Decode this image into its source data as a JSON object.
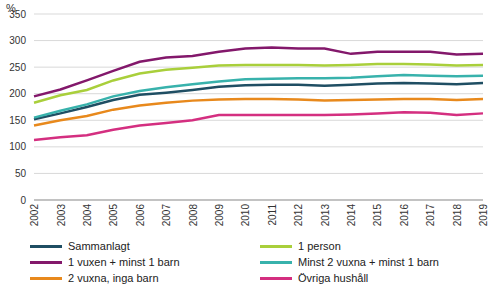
{
  "chart_data": {
    "type": "line",
    "y_label": "%",
    "categories": [
      "2002",
      "2003",
      "2004",
      "2005",
      "2006",
      "2007",
      "2008",
      "2009",
      "2010",
      "2011",
      "2012",
      "2013",
      "2014",
      "2015",
      "2016",
      "2017",
      "2018",
      "2019"
    ],
    "series": [
      {
        "name": "Sammanlagt",
        "color": "#1f4e63",
        "values": [
          152,
          163,
          175,
          188,
          198,
          202,
          207,
          213,
          216,
          217,
          217,
          215,
          217,
          219,
          220,
          219,
          218,
          220
        ]
      },
      {
        "name": "1 person",
        "color": "#a9cf3b",
        "values": [
          183,
          197,
          207,
          225,
          238,
          245,
          249,
          253,
          254,
          254,
          254,
          253,
          254,
          256,
          256,
          255,
          253,
          254
        ]
      },
      {
        "name": "1 vuxen + minst 1 barn",
        "color": "#83186b",
        "values": [
          195,
          208,
          225,
          243,
          260,
          268,
          271,
          279,
          285,
          287,
          285,
          285,
          275,
          279,
          279,
          279,
          274,
          275
        ]
      },
      {
        "name": "Minst 2 vuxna + minst 1 barn",
        "color": "#38b2ac",
        "values": [
          155,
          168,
          180,
          195,
          205,
          212,
          218,
          223,
          227,
          228,
          229,
          229,
          230,
          233,
          235,
          234,
          233,
          234
        ]
      },
      {
        "name": "2 vuxna, inga barn",
        "color": "#e8891c",
        "values": [
          140,
          150,
          158,
          170,
          178,
          183,
          187,
          189,
          190,
          190,
          189,
          187,
          188,
          189,
          190,
          190,
          188,
          190
        ]
      },
      {
        "name": "Övriga hushåll",
        "color": "#d42f80",
        "values": [
          113,
          118,
          122,
          132,
          140,
          145,
          150,
          160,
          160,
          160,
          160,
          160,
          161,
          163,
          165,
          164,
          160,
          163
        ]
      }
    ],
    "ylim": [
      0,
      350
    ],
    "yticks": [
      0,
      50,
      100,
      150,
      200,
      250,
      300,
      350
    ],
    "grid": true,
    "legend": "bottom"
  }
}
